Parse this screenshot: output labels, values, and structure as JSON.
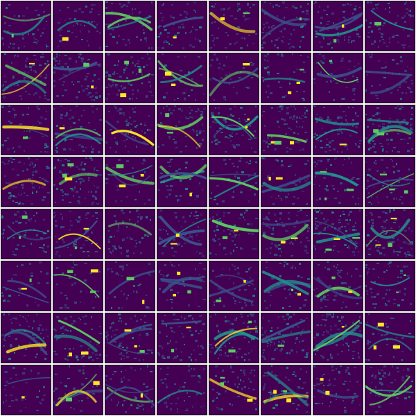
{
  "figure": {
    "description_type": "feature-map grid",
    "rows": 8,
    "cols": 8,
    "colormap": {
      "name": "viridis",
      "stops": [
        "#440154",
        "#3b528b",
        "#21918c",
        "#5ec962",
        "#fde725"
      ]
    },
    "background_color": "#ffffff",
    "tile_base_color": "#440154"
  }
}
